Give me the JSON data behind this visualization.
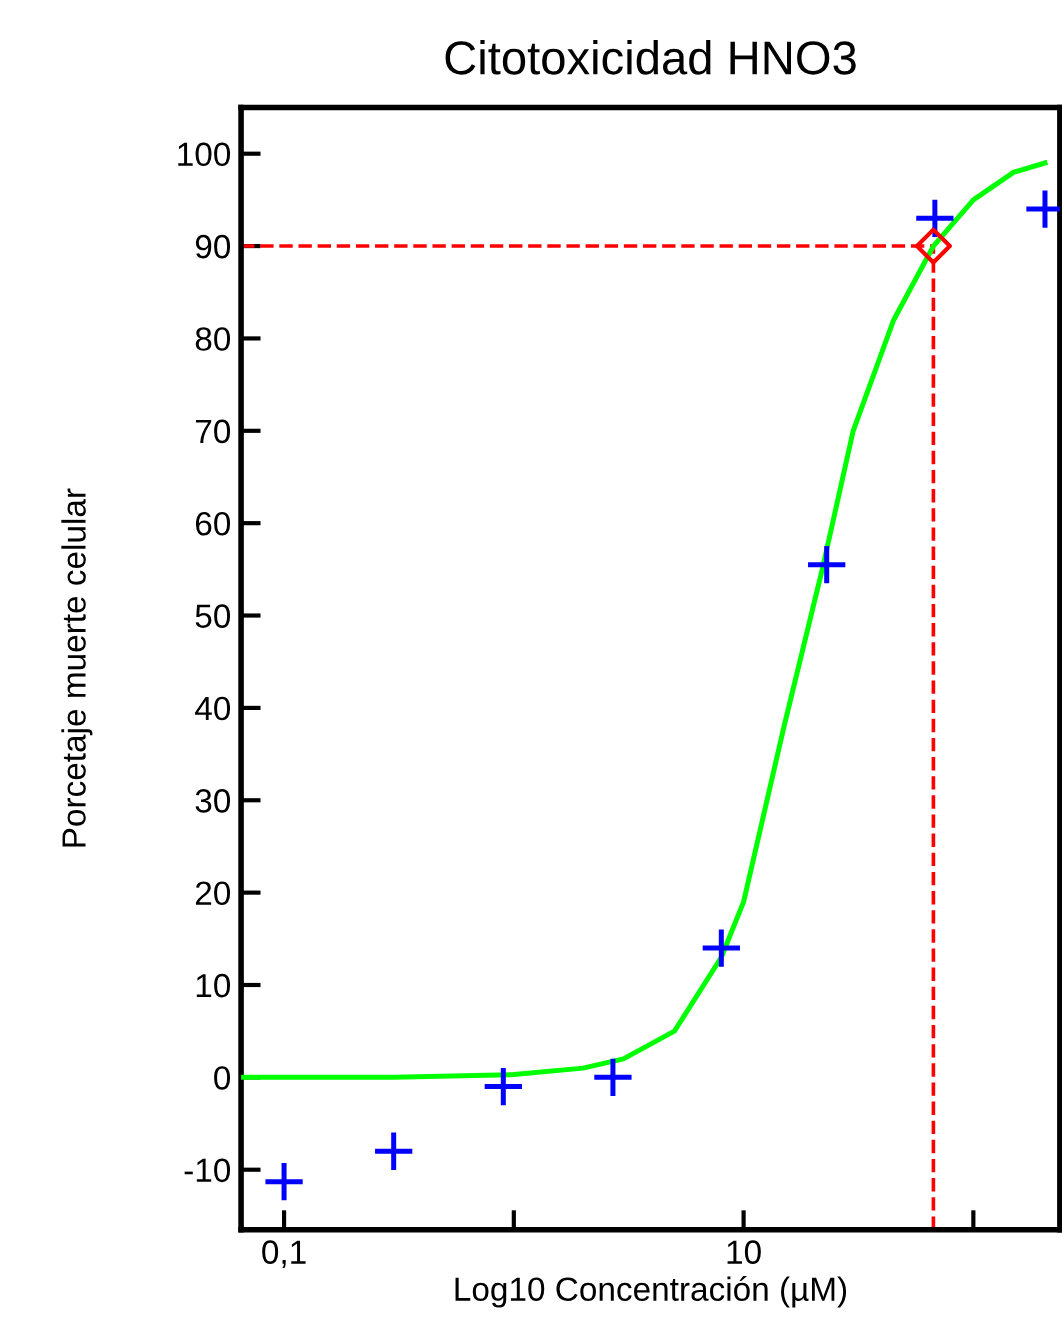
{
  "chart_data": {
    "type": "scatter",
    "title": "Citotoxicidad HNO3",
    "xlabel": "Log10 Concentración (µM)",
    "ylabel": "Porcetaje muerte celular",
    "log": "x",
    "xlim": [
      0.065,
      238
    ],
    "xticks": [
      {
        "value": 0.1,
        "label": "0,1"
      },
      {
        "value": 1,
        "label": null
      },
      10,
      {
        "value": 100,
        "label": null
      }
    ],
    "ylim": [
      -16.5,
      105
    ],
    "yticks": [
      -10,
      0,
      10,
      20,
      30,
      40,
      50,
      60,
      70,
      80,
      90,
      100
    ],
    "grid": false,
    "legend": false,
    "series": [
      {
        "type": "line",
        "color": "#00ff00",
        "marker": "none",
        "line_style": "solid",
        "x": [
          0.065,
          0.3,
          1,
          2,
          3,
          5,
          8,
          10,
          15,
          22,
          30,
          45,
          67,
          100,
          150,
          205
        ],
        "values": [
          0,
          0,
          0.3,
          1,
          2,
          5,
          13,
          19,
          38,
          55,
          70,
          82,
          90,
          95,
          98,
          99
        ]
      },
      {
        "color": "#0000ff",
        "marker": "cross",
        "x": [
          0.1,
          0.3,
          0.9,
          2.7,
          8,
          23,
          68,
          205
        ],
        "values": [
          -11.3,
          -8,
          -1,
          0,
          14,
          55.5,
          93,
          94
        ]
      },
      {
        "type": "scatter",
        "color": "#ff0000",
        "marker": "diamond",
        "x": [
          67
        ],
        "values": [
          90
        ]
      }
    ],
    "ref_lines": [
      {
        "axis": "y",
        "value": 90,
        "color": "#ff0000",
        "line_style": "dashed"
      },
      {
        "axis": "x",
        "value": 67,
        "color": "#ff0000",
        "line_style": "dashed"
      }
    ]
  }
}
